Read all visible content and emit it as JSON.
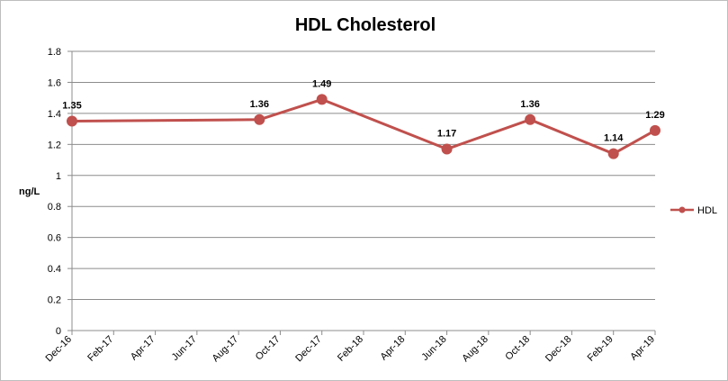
{
  "chart_data": {
    "type": "line",
    "title": "HDL Cholesterol",
    "ylabel": "ng/L",
    "xlabel": "",
    "ylim": [
      0,
      1.8
    ],
    "yticks": [
      "0",
      "0.2",
      "0.4",
      "0.6",
      "0.8",
      "1",
      "1.2",
      "1.4",
      "1.6",
      "1.8"
    ],
    "xticks": [
      "Dec-16",
      "Feb-17",
      "Apr-17",
      "Jun-17",
      "Aug-17",
      "Oct-17",
      "Dec-17",
      "Feb-18",
      "Apr-18",
      "Jun-18",
      "Aug-18",
      "Oct-18",
      "Dec-18",
      "Feb-19",
      "Apr-19"
    ],
    "grid": true,
    "legend_position": "right",
    "series": [
      {
        "name": "HDL",
        "color": "#c0504d",
        "x": [
          "Dec-16",
          "Sep-17",
          "Dec-17",
          "Jun-18",
          "Oct-18",
          "Feb-19",
          "Apr-19"
        ],
        "values": [
          1.35,
          1.36,
          1.49,
          1.17,
          1.36,
          1.14,
          1.29
        ],
        "labels": [
          "1.35",
          "1.36",
          "1.49",
          "1.17",
          "1.36",
          "1.14",
          "1.29"
        ]
      }
    ]
  }
}
